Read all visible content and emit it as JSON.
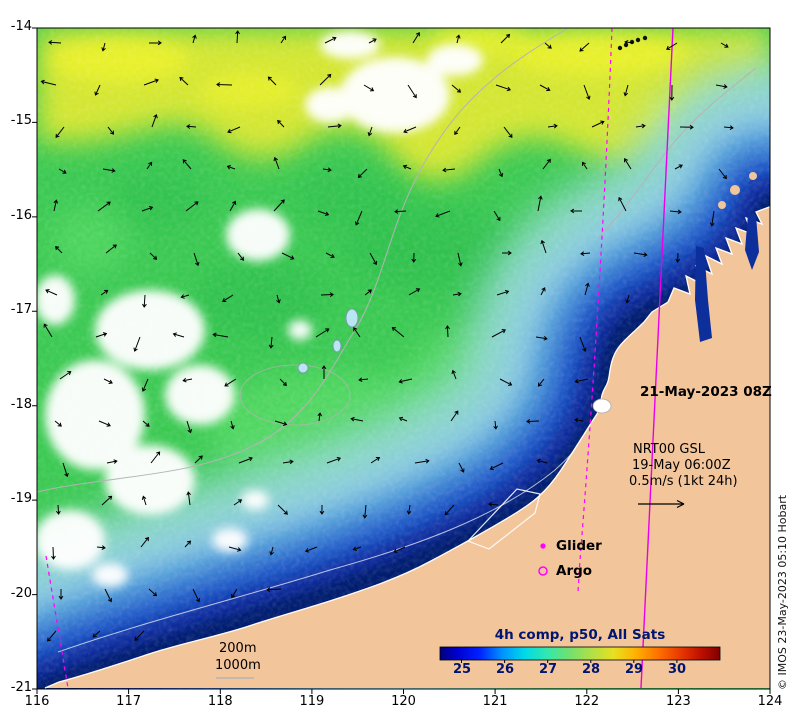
{
  "figure": {
    "map": {
      "date_label": "21-May-2023 08Z",
      "model_name": "NRT00 GSL",
      "model_time": "19-May 06:00Z",
      "velocity_scale": "0.5m/s (1kt 24h)",
      "glider_label": "Glider",
      "argo_label": "Argo",
      "depth_200": "200m",
      "depth_1000": "1000m"
    },
    "colorbar": {
      "title": "4h comp, p50, All Sats",
      "ticks": [
        "25",
        "26",
        "27",
        "28",
        "29",
        "30"
      ]
    },
    "copyright": "© IMOS 23-May-2023 05:10 Hobart",
    "x_ticks": [
      "116",
      "117",
      "118",
      "119",
      "120",
      "121",
      "122",
      "123",
      "124"
    ],
    "y_ticks": [
      "-14",
      "-15",
      "-16",
      "-17",
      "-18",
      "-19",
      "-20",
      "-21"
    ]
  },
  "chart_data": {
    "type": "heatmap",
    "title": "4h comp, p50, All Sats",
    "xlim": [
      116,
      124
    ],
    "ylim": [
      -21,
      -14
    ],
    "x_tick_values": [
      116,
      117,
      118,
      119,
      120,
      121,
      122,
      123,
      124
    ],
    "y_tick_values": [
      -14,
      -15,
      -16,
      -17,
      -18,
      -19,
      -20,
      -21
    ],
    "colorbar": {
      "orientation": "horizontal",
      "tick_values": [
        25,
        26,
        27,
        28,
        29,
        30
      ],
      "range_estimate": [
        24.5,
        31
      ],
      "colormap": "jet"
    },
    "field_estimate_degC": [
      {
        "region": "offshore north of -16S (yellow)",
        "value": 28.5
      },
      {
        "region": "central shelf -16S to -18.5S (green)",
        "value": 27
      },
      {
        "region": "mid coastal band (blue)",
        "value": 26
      },
      {
        "region": "nearshore southeast coast (navy)",
        "value": 24.8
      }
    ],
    "overlays": {
      "current_vectors": "black arrows, reference 0.5m/s (1kt 24h)",
      "satellite_tracks": "magenta dashed and solid lines",
      "depth_contours_m": [
        200,
        1000
      ],
      "no_data": "white patches (cloud gaps)"
    },
    "legend": [
      {
        "label": "Glider",
        "marker": "magenta point"
      },
      {
        "label": "Argo",
        "marker": "magenta open circle"
      }
    ],
    "annotations": [
      "21-May-2023 08Z",
      "NRT00 GSL",
      "19-May 06:00Z",
      "0.5m/s (1kt 24h)"
    ],
    "colors": {
      "land": "#f3c59b",
      "track": "#ff00ff",
      "warm": "#e8ee30",
      "mid_green": "#3cc953",
      "cold_navy": "#051a6e"
    }
  }
}
